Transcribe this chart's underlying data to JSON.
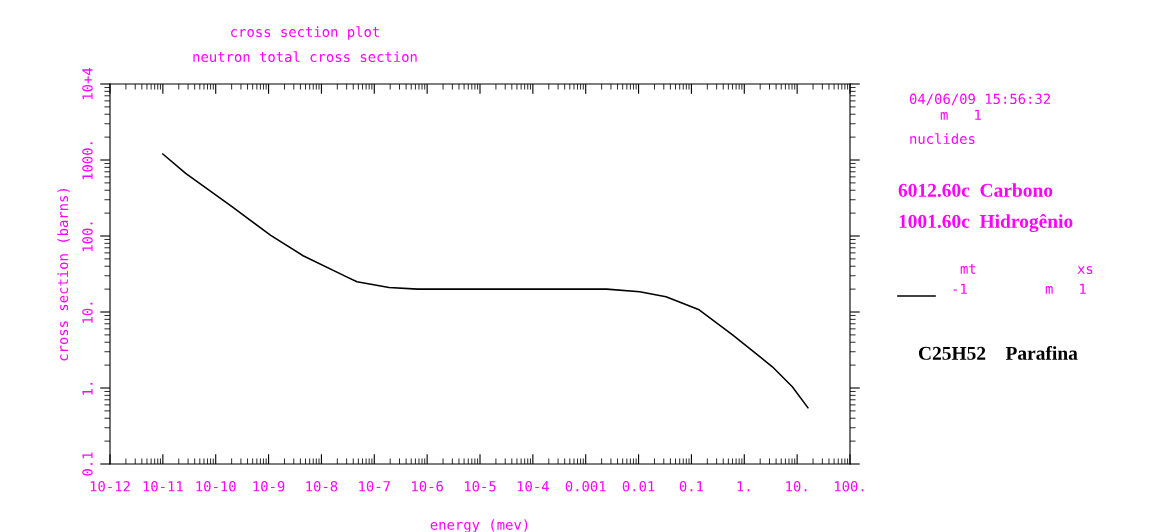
{
  "chart_data": {
    "type": "line",
    "title": "cross section plot",
    "subtitle": "neutron total cross section",
    "xlabel": "energy (mev)",
    "ylabel": "cross section (barns)",
    "log": "xy",
    "grid": false,
    "legend": false,
    "marker": "none",
    "line_style": "solid",
    "series": [
      {
        "color": "#000000",
        "x": [
          1e-11,
          2.7e-11,
          2e-10,
          1.1e-09,
          4.5e-09,
          3e-08,
          4.7e-08,
          1.9e-07,
          6.6e-07,
          0.0025,
          0.0105,
          0.033,
          0.14,
          0.6,
          3.4,
          8.1,
          16
        ],
        "values": [
          1200,
          667,
          245,
          102,
          55,
          29,
          25,
          21,
          20,
          20,
          18.5,
          15.9,
          10.7,
          5.0,
          1.9,
          1.04,
          0.55
        ]
      }
    ],
    "xlim": [
      1e-12,
      100
    ],
    "xticks": [
      {
        "value": 1e-12,
        "label": "10-12"
      },
      {
        "value": 1e-11,
        "label": "10-11"
      },
      {
        "value": 1e-10,
        "label": "10-10"
      },
      {
        "value": 1e-09,
        "label": "10-9"
      },
      {
        "value": 1e-08,
        "label": "10-8"
      },
      {
        "value": 1e-07,
        "label": "10-7"
      },
      {
        "value": 1e-06,
        "label": "10-6"
      },
      {
        "value": 1e-05,
        "label": "10-5"
      },
      {
        "value": 0.0001,
        "label": "10-4"
      },
      {
        "value": 0.001,
        "label": "0.001"
      },
      {
        "value": 0.01,
        "label": "0.01"
      },
      {
        "value": 0.1,
        "label": "0.1"
      },
      {
        "value": 1,
        "label": "1."
      },
      {
        "value": 10,
        "label": "10."
      },
      {
        "value": 100,
        "label": "100."
      }
    ],
    "ylim": [
      0.1,
      10000
    ],
    "yticks": [
      {
        "value": 0.1,
        "label": "0.1"
      },
      {
        "value": 1,
        "label": "1."
      },
      {
        "value": 10,
        "label": "10."
      },
      {
        "value": 100,
        "label": "100."
      },
      {
        "value": 1000,
        "label": "1000."
      },
      {
        "value": 10000,
        "label": "10+4"
      }
    ],
    "annotations": [
      "04/06/09 15:56:32",
      "m   1",
      "nuclides",
      "6012.60c  Carbono",
      "1001.60c  Hidrogênio",
      "mt",
      "xs",
      "-1",
      "m   1",
      "C25H52    Parafina"
    ]
  }
}
